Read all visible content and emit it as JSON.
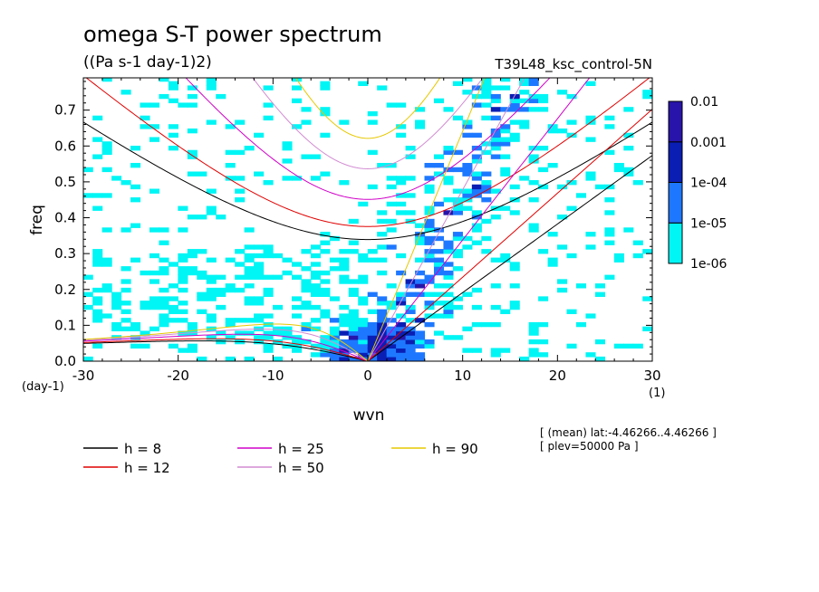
{
  "chart_data": {
    "type": "heatmap",
    "title": "omega S-T power spectrum",
    "units": "((Pa s-1 day-1)2)",
    "run_label": "T39L48_ksc_control-5N",
    "xlabel": "wvn",
    "ylabel": "freq",
    "x_unit_label": "(1)",
    "y_unit_label": "(day-1)",
    "xlim": [
      -30,
      30
    ],
    "ylim": [
      0,
      0.79
    ],
    "x_ticks": [
      -30,
      -20,
      -10,
      0,
      10,
      20,
      30
    ],
    "x_tick_labels": [
      "-30",
      "-20",
      "-10",
      "0",
      "10",
      "20",
      "30"
    ],
    "y_ticks": [
      0,
      0.1,
      0.2,
      0.3,
      0.4,
      0.5,
      0.6,
      0.7
    ],
    "y_tick_labels": [
      "0.0",
      "0.1",
      "0.2",
      "0.3",
      "0.4",
      "0.5",
      "0.6",
      "0.7"
    ],
    "colorbar": {
      "levels": [
        "1e-06",
        "1e-05",
        "1e-04",
        "0.001",
        "0.01"
      ],
      "colors": [
        "#00f5f5",
        "#1e78ff",
        "#0a1eb4",
        "#2814aa"
      ]
    },
    "shading_regions": [
      {
        "level": 0,
        "kind": "broad-background",
        "x_range": [
          -30,
          30
        ],
        "y_range": [
          0,
          0.79
        ]
      },
      {
        "level": 1,
        "kind": "eastward-band",
        "x_range": [
          -6,
          20
        ],
        "y_range": [
          0,
          0.79
        ]
      },
      {
        "level": 2,
        "kind": "core",
        "x_range": [
          -4,
          7
        ],
        "y_range": [
          0,
          0.35
        ]
      },
      {
        "level": 3,
        "kind": "peaks",
        "x_range": [
          1,
          18
        ],
        "y_range": [
          0.05,
          0.77
        ]
      }
    ],
    "dispersion_curves": {
      "legend": [
        {
          "label": "h =  8",
          "color": "#000000"
        },
        {
          "label": "h = 12",
          "color": "#e00000"
        },
        {
          "label": "h = 25",
          "color": "#d000c8"
        },
        {
          "label": "h = 50",
          "color": "#d28cd2"
        },
        {
          "label": "h = 90",
          "color": "#e6c800"
        }
      ],
      "equivalent_depths_m": [
        8,
        12,
        25,
        50,
        90
      ],
      "families": [
        "kelvin",
        "rossby_n1",
        "inertia_gravity_n1"
      ]
    },
    "annotations": [
      "[ (mean) lat:-4.46266..4.46266 ]",
      "[ plev=50000 Pa ]"
    ]
  }
}
